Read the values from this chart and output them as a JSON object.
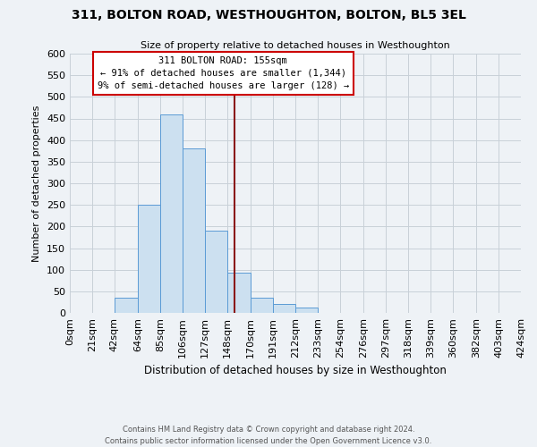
{
  "title": "311, BOLTON ROAD, WESTHOUGHTON, BOLTON, BL5 3EL",
  "subtitle": "Size of property relative to detached houses in Westhoughton",
  "xlabel": "Distribution of detached houses by size in Westhoughton",
  "ylabel": "Number of detached properties",
  "annotation_line1": "311 BOLTON ROAD: 155sqm",
  "annotation_line2": "← 91% of detached houses are smaller (1,344)",
  "annotation_line3": "9% of semi-detached houses are larger (128) →",
  "property_size": 155,
  "bin_edges": [
    0,
    21,
    42,
    64,
    85,
    106,
    127,
    148,
    170,
    191,
    212,
    233,
    254,
    276,
    297,
    318,
    339,
    360,
    382,
    403,
    424
  ],
  "bin_counts": [
    0,
    0,
    35,
    250,
    460,
    380,
    190,
    93,
    35,
    20,
    12,
    0,
    0,
    0,
    0,
    0,
    0,
    0,
    0,
    0
  ],
  "bar_face_color": "#cce0f0",
  "bar_edge_color": "#5b9bd5",
  "vline_color": "#8b1a1a",
  "vline_x": 155,
  "ylim": [
    0,
    600
  ],
  "yticks": [
    0,
    50,
    100,
    150,
    200,
    250,
    300,
    350,
    400,
    450,
    500,
    550,
    600
  ],
  "grid_color": "#c8d0d8",
  "background_color": "#eef2f6",
  "footer_line1": "Contains HM Land Registry data © Crown copyright and database right 2024.",
  "footer_line2": "Contains public sector information licensed under the Open Government Licence v3.0."
}
